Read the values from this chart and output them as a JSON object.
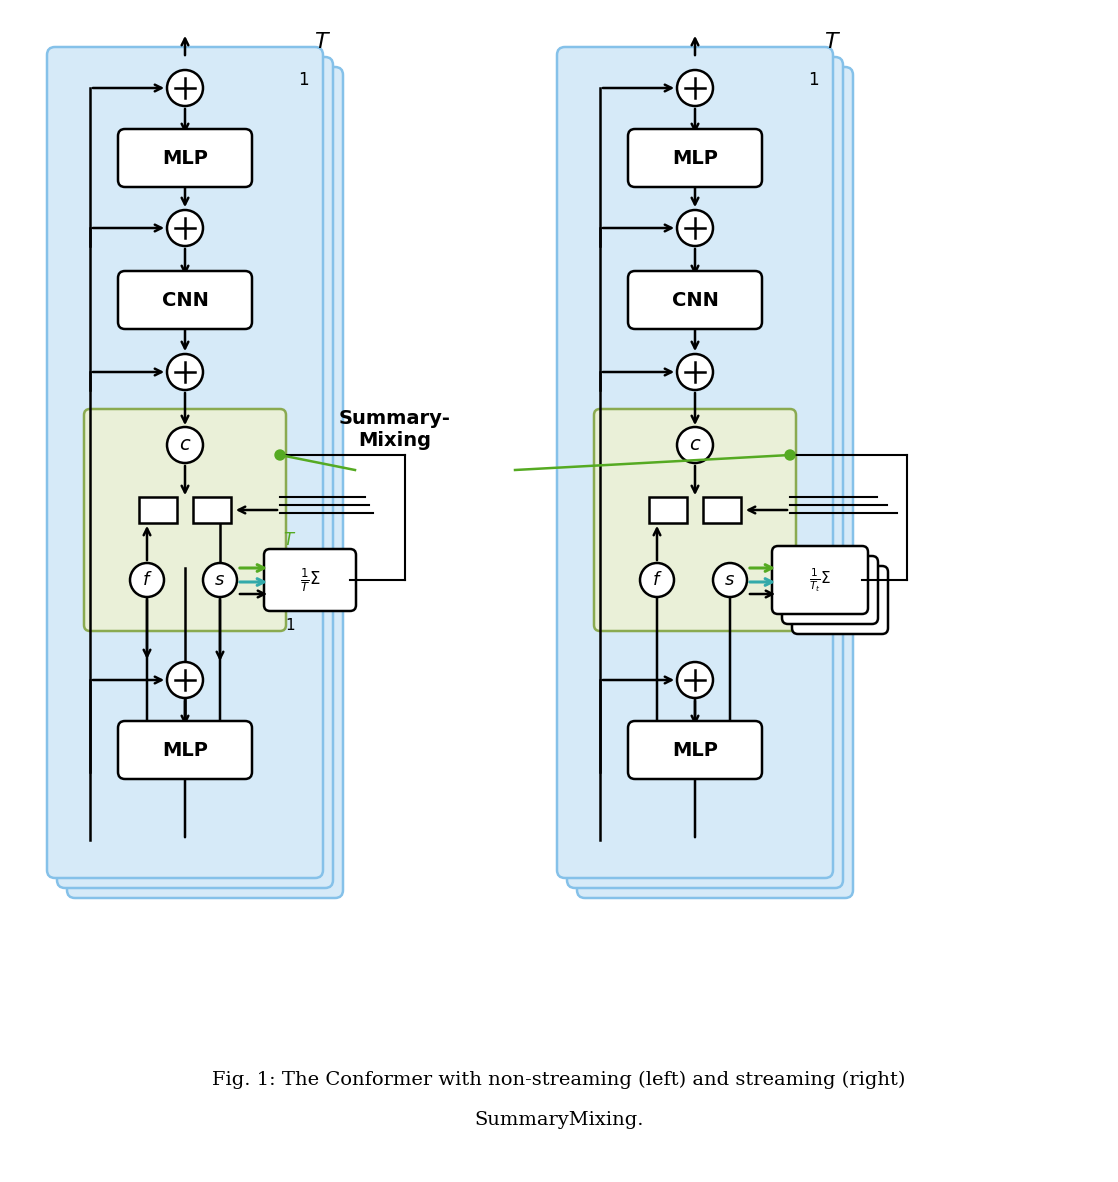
{
  "bg_color": "#ffffff",
  "blue_bg": "#d6eaf8",
  "blue_border": "#85c1e9",
  "green_bg": "#eaf0d8",
  "green_border": "#8aaa50",
  "fig_caption_line1": "Fig. 1: The Conformer with non-streaming (left) and streaming (right)",
  "fig_caption_line2": "SummaryMixing.",
  "summary_mixing_label": "Summary-\nMixing",
  "green_arrow_color": "#55aa22",
  "teal_arrow_color": "#33aaaa",
  "black_color": "#000000",
  "green_dot_color": "#55aa22",
  "label_T": "$T$",
  "label_1": "1"
}
